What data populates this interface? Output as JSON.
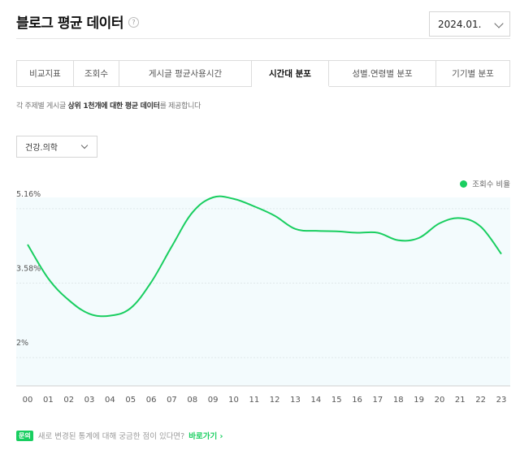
{
  "header": {
    "title": "블로그 평균 데이터",
    "help_icon": "?"
  },
  "date_select": {
    "value": "2024.01."
  },
  "tabs": [
    {
      "label": "비교지표"
    },
    {
      "label": "조회수"
    },
    {
      "label": "게시글 평균사용시간"
    },
    {
      "label": "시간대 분포"
    },
    {
      "label": "성별.연령별 분포"
    },
    {
      "label": "기기별 분포"
    }
  ],
  "description": {
    "prefix": "각 주제별 게시글 ",
    "bold": "상위 1천개에 대한 평균 데이터",
    "suffix": "를 제공합니다"
  },
  "category_select": {
    "value": "건강.의학"
  },
  "legend": {
    "label": "조회수 비율",
    "color": "#19ce60"
  },
  "chart_data": {
    "type": "line",
    "x": [
      "00",
      "01",
      "02",
      "03",
      "04",
      "05",
      "06",
      "07",
      "08",
      "09",
      "10",
      "11",
      "12",
      "13",
      "14",
      "15",
      "16",
      "17",
      "18",
      "19",
      "20",
      "21",
      "22",
      "23"
    ],
    "series": [
      {
        "name": "조회수 비율",
        "color": "#19ce60",
        "values": [
          4.4,
          3.68,
          3.22,
          2.93,
          2.89,
          3.05,
          3.6,
          4.36,
          5.08,
          5.4,
          5.37,
          5.21,
          5.01,
          4.73,
          4.69,
          4.68,
          4.65,
          4.65,
          4.49,
          4.54,
          4.85,
          4.96,
          4.78,
          4.2
        ]
      }
    ],
    "yticks": [
      {
        "value": 5.16,
        "label": "5.16%"
      },
      {
        "value": 3.58,
        "label": "3.58%"
      },
      {
        "value": 2.0,
        "label": "2%"
      }
    ],
    "ylim": [
      1.4,
      5.4
    ],
    "grid": true,
    "legend_position": "top-right",
    "fill_color": "#f3fbfd"
  },
  "footer": {
    "badge": "문의",
    "text": "새로 변경된 통계에 대해 궁금한 점이 있다면?",
    "link": "바로가기 ›"
  }
}
